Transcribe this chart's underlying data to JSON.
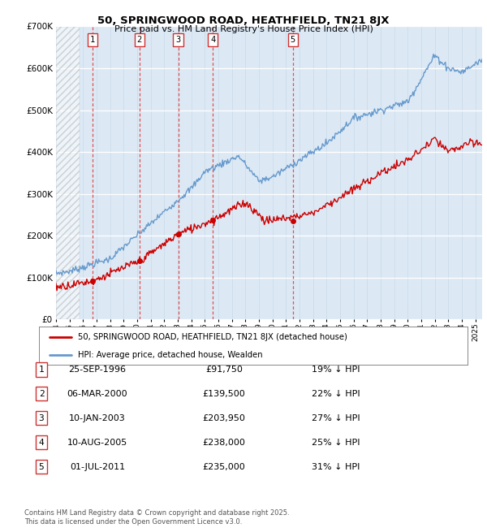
{
  "title": "50, SPRINGWOOD ROAD, HEATHFIELD, TN21 8JX",
  "subtitle": "Price paid vs. HM Land Registry's House Price Index (HPI)",
  "ylim": [
    0,
    700000
  ],
  "xlim_start": 1994.0,
  "xlim_end": 2025.5,
  "background_color": "#dce9f5",
  "hatch_end_year": 1995.75,
  "transaction_dashed_color": "#e05050",
  "transactions": [
    {
      "num": "1",
      "date_x": 1996.72,
      "price": 91750
    },
    {
      "num": "2",
      "date_x": 2000.17,
      "price": 139500
    },
    {
      "num": "3",
      "date_x": 2003.03,
      "price": 203950
    },
    {
      "num": "4",
      "date_x": 2005.6,
      "price": 238000
    },
    {
      "num": "5",
      "date_x": 2011.5,
      "price": 235000
    }
  ],
  "table_rows": [
    {
      "num": "1",
      "date": "25-SEP-1996",
      "price": "£91,750",
      "pct": "19% ↓ HPI"
    },
    {
      "num": "2",
      "date": "06-MAR-2000",
      "price": "£139,500",
      "pct": "22% ↓ HPI"
    },
    {
      "num": "3",
      "date": "10-JAN-2003",
      "price": "£203,950",
      "pct": "27% ↓ HPI"
    },
    {
      "num": "4",
      "date": "10-AUG-2005",
      "price": "£238,000",
      "pct": "25% ↓ HPI"
    },
    {
      "num": "5",
      "date": "01-JUL-2011",
      "price": "£235,000",
      "pct": "31% ↓ HPI"
    }
  ],
  "legend_line1": "50, SPRINGWOOD ROAD, HEATHFIELD, TN21 8JX (detached house)",
  "legend_line2": "HPI: Average price, detached house, Wealden",
  "footer": "Contains HM Land Registry data © Crown copyright and database right 2025.\nThis data is licensed under the Open Government Licence v3.0.",
  "line_color_red": "#cc0000",
  "line_color_blue": "#6699cc",
  "ytick_labels": [
    "£0",
    "£100K",
    "£200K",
    "£300K",
    "£400K",
    "£500K",
    "£600K",
    "£700K"
  ],
  "ytick_values": [
    0,
    100000,
    200000,
    300000,
    400000,
    500000,
    600000,
    700000
  ],
  "grid_color": "#c8d8e8",
  "box_edge_color": "#cc3333"
}
